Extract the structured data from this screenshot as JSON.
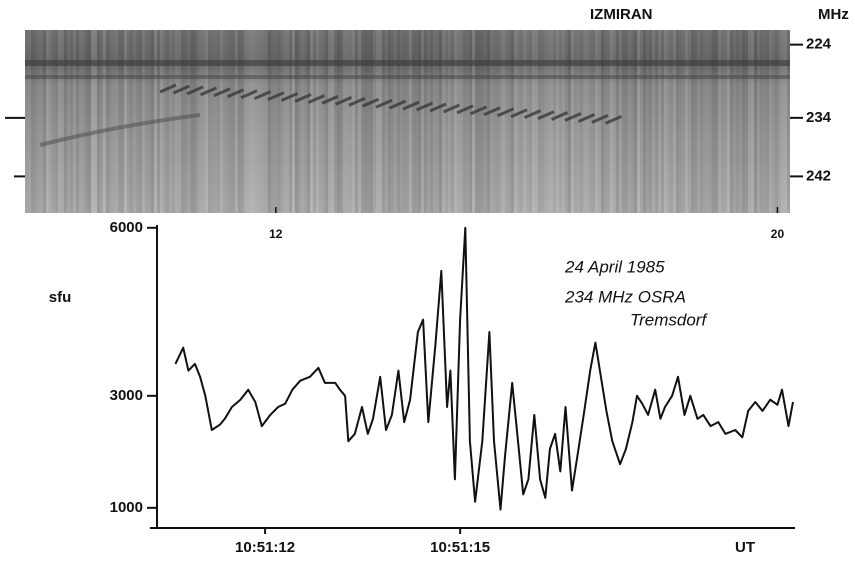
{
  "chart_data": [
    {
      "type": "spectrogram",
      "title": "IZMIRAN",
      "y_label": "MHz",
      "ylim": [
        222,
        247
      ],
      "yticks": [
        224,
        234,
        242
      ],
      "inverted": true,
      "xlim": [
        8,
        20.2
      ],
      "xticks": [
        12,
        20
      ]
    },
    {
      "type": "line",
      "y_label": "sfu",
      "x_label": "UT",
      "annotations": [
        "24 April 1985",
        "234 MHz  OSRA",
        "Tremsdorf"
      ],
      "color": "#111111",
      "xlim": [
        10.23,
        20.15
      ],
      "xticks": [
        {
          "value": 12,
          "label": "10:51:12"
        },
        {
          "value": 15,
          "label": "10:51:15"
        }
      ],
      "ylim": [
        640,
        6050
      ],
      "yticks": [
        1000,
        3000,
        6000
      ],
      "x": [
        10.62,
        10.74,
        10.82,
        10.92,
        11.0,
        11.08,
        11.18,
        11.31,
        11.38,
        11.49,
        11.62,
        11.74,
        11.85,
        11.95,
        12.08,
        12.2,
        12.31,
        12.42,
        12.54,
        12.69,
        12.82,
        12.92,
        13.08,
        13.15,
        13.23,
        13.28,
        13.38,
        13.49,
        13.58,
        13.66,
        13.77,
        13.86,
        13.95,
        14.05,
        14.14,
        14.23,
        14.35,
        14.43,
        14.51,
        14.62,
        14.71,
        14.8,
        14.85,
        14.92,
        15.0,
        15.08,
        15.15,
        15.23,
        15.34,
        15.45,
        15.52,
        15.62,
        15.69,
        15.8,
        15.89,
        15.97,
        16.05,
        16.14,
        16.23,
        16.31,
        16.38,
        16.46,
        16.54,
        16.62,
        16.72,
        16.82,
        16.91,
        17.0,
        17.08,
        17.15,
        17.25,
        17.34,
        17.46,
        17.55,
        17.65,
        17.72,
        17.8,
        17.89,
        18.0,
        18.08,
        18.15,
        18.26,
        18.35,
        18.45,
        18.54,
        18.65,
        18.74,
        18.85,
        18.97,
        19.08,
        19.23,
        19.34,
        19.43,
        19.54,
        19.65,
        19.77,
        19.88,
        19.95,
        20.05,
        20.12
      ],
      "values": [
        3570,
        3860,
        3450,
        3570,
        3340,
        3000,
        2390,
        2490,
        2590,
        2800,
        2930,
        3110,
        2890,
        2460,
        2660,
        2800,
        2860,
        3110,
        3270,
        3340,
        3500,
        3230,
        3230,
        3110,
        3000,
        2190,
        2320,
        2800,
        2320,
        2590,
        3340,
        2390,
        2660,
        3450,
        2530,
        2930,
        4140,
        4360,
        2530,
        3910,
        5230,
        2800,
        3450,
        1510,
        4360,
        6000,
        2190,
        1110,
        2190,
        4140,
        2190,
        970,
        1920,
        3230,
        2190,
        1240,
        1510,
        2660,
        1510,
        1180,
        2050,
        2320,
        1650,
        2800,
        1310,
        2050,
        2730,
        3450,
        3950,
        3450,
        2730,
        2190,
        1780,
        2050,
        2530,
        3000,
        2860,
        2660,
        3110,
        2590,
        2800,
        3000,
        3340,
        2660,
        3000,
        2590,
        2660,
        2460,
        2530,
        2320,
        2390,
        2260,
        2730,
        2890,
        2730,
        2930,
        2840,
        3110,
        2460,
        2890
      ]
    }
  ]
}
